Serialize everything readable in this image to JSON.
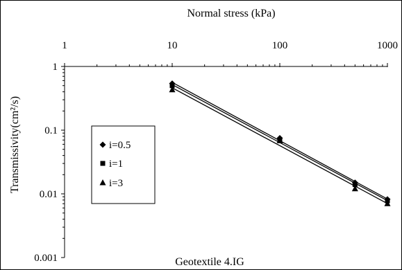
{
  "chart_data": {
    "type": "scatter",
    "title": "Normal stress (kPa)",
    "xlabel": "Normal stress (kPa)",
    "ylabel": "Transmissivity(cm²/s)",
    "annotation": "Geotextile 4.IG",
    "x_scale": "log",
    "y_scale": "log",
    "xlim": [
      1,
      1000
    ],
    "ylim": [
      0.001,
      1
    ],
    "x_ticks": [
      "1",
      "10",
      "100",
      "1000"
    ],
    "y_ticks": [
      "1",
      "0.1",
      "0.01",
      "0.001"
    ],
    "x_axis_position": "top",
    "grid": false,
    "legend_position": "left-middle",
    "series": [
      {
        "name": "i=0.5",
        "marker": "diamond",
        "x": [
          10,
          100,
          500,
          1000
        ],
        "y": [
          0.54,
          0.075,
          0.015,
          0.0082
        ]
      },
      {
        "name": "i=1",
        "marker": "square",
        "x": [
          10,
          100,
          500,
          1000
        ],
        "y": [
          0.5,
          0.07,
          0.014,
          0.0078
        ]
      },
      {
        "name": "i=3",
        "marker": "triangle",
        "x": [
          10,
          100,
          500,
          1000
        ],
        "y": [
          0.43,
          0.068,
          0.012,
          0.007
        ]
      }
    ]
  }
}
